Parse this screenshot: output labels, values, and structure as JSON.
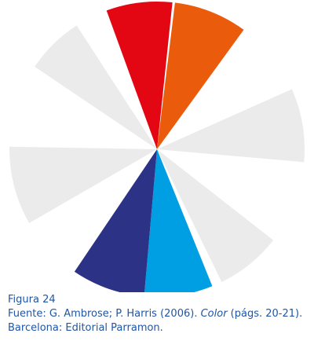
{
  "wheel": {
    "segments": [
      {
        "name": "red",
        "color": "#e30613",
        "start_deg": -20,
        "end_deg": 6
      },
      {
        "name": "orange",
        "color": "#ea5b0c",
        "start_deg": 7,
        "end_deg": 36
      },
      {
        "name": "gray-upper-right",
        "color": "#ebebeb",
        "start_deg": 66,
        "end_deg": 95
      },
      {
        "name": "gray-lower-right",
        "color": "#ebebeb",
        "start_deg": 128,
        "end_deg": 154
      },
      {
        "name": "cyan",
        "color": "#009fe3",
        "start_deg": 158,
        "end_deg": 185
      },
      {
        "name": "navy",
        "color": "#2c3286",
        "start_deg": 185,
        "end_deg": 214
      },
      {
        "name": "gray-lower-left",
        "color": "#ebebeb",
        "start_deg": 240,
        "end_deg": 271
      },
      {
        "name": "gray-upper-left",
        "color": "#ebebeb",
        "start_deg": 304,
        "end_deg": 327
      }
    ]
  },
  "caption": {
    "figure": "Figura 24",
    "source_prefix": "Fuente: G. Ambrose; P. Harris (2006). ",
    "source_title": "Color",
    "source_suffix": " (págs. 20-21). Barcelona: Editorial Parramon."
  }
}
